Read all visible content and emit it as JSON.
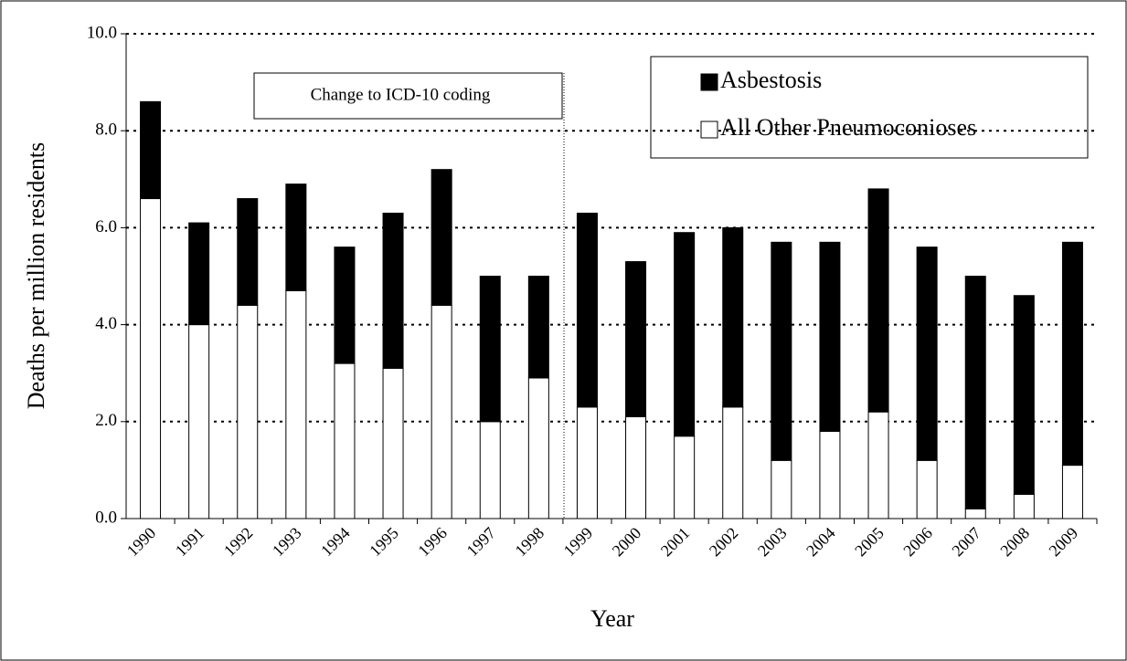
{
  "chart_data": {
    "type": "stacked-bar",
    "y_label": "Deaths per million residents",
    "x_label": "Year",
    "annotation": "Change to ICD-10 coding",
    "categories": [
      "1990",
      "1991",
      "1992",
      "1993",
      "1994",
      "1995",
      "1996",
      "1997",
      "1998",
      "1999",
      "2000",
      "2001",
      "2002",
      "2003",
      "2004",
      "2005",
      "2006",
      "2007",
      "2008",
      "2009"
    ],
    "series": [
      {
        "name": "All Other Pneumoconioses",
        "color": "#ffffff",
        "values": [
          6.6,
          4.0,
          4.4,
          4.7,
          3.2,
          3.1,
          4.4,
          2.0,
          2.9,
          2.3,
          2.1,
          1.7,
          2.3,
          1.2,
          1.8,
          2.2,
          1.2,
          0.2,
          0.5,
          1.1
        ]
      },
      {
        "name": "Asbestosis",
        "color": "#000000",
        "values": [
          2.0,
          2.1,
          2.2,
          2.2,
          2.4,
          3.2,
          2.8,
          3.0,
          2.1,
          4.0,
          3.2,
          4.2,
          3.7,
          4.5,
          3.9,
          4.6,
          4.4,
          4.8,
          4.1,
          4.6
        ]
      }
    ],
    "ylim": [
      0,
      10
    ],
    "yticks": [
      {
        "value": 0,
        "label": "0.0"
      },
      {
        "value": 2,
        "label": "2.0"
      },
      {
        "value": 4,
        "label": "4.0"
      },
      {
        "value": 6,
        "label": "6.0"
      },
      {
        "value": 8,
        "label": "8.0"
      },
      {
        "value": 10,
        "label": "10.0"
      }
    ],
    "grid": true
  }
}
